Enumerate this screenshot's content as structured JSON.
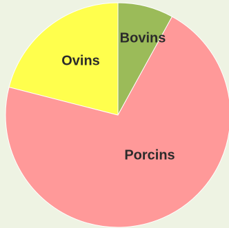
{
  "chart_data": {
    "type": "pie",
    "title": "",
    "start_angle_deg": 0,
    "direction": "clockwise",
    "legend": "none",
    "slices": [
      {
        "label": "Bovins",
        "value": 8,
        "color": "#9bbb59"
      },
      {
        "label": "Porcins",
        "value": 71,
        "color": "#ff9999"
      },
      {
        "label": "Ovins",
        "value": 21,
        "color": "#ffff4d"
      }
    ]
  }
}
